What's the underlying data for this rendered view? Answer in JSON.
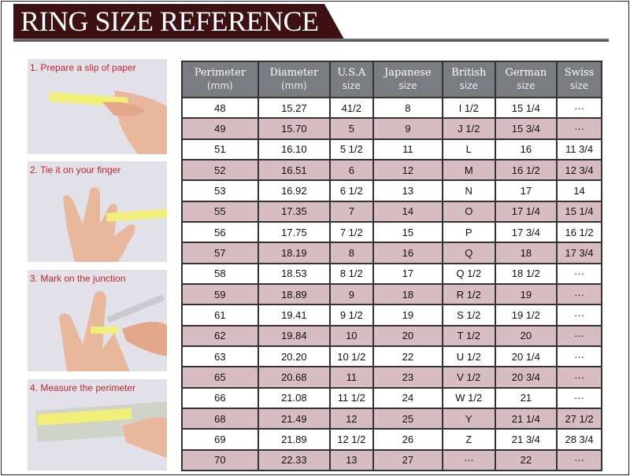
{
  "title": "RING SIZE REFERENCE",
  "colors": {
    "banner": "#3d1113",
    "header": "#7b7b82",
    "alt_row": "#d7bcc1",
    "step_text": "#c0282b"
  },
  "steps": [
    {
      "label": "1. Prepare a slip of paper"
    },
    {
      "label": "2. Tie it on your finger"
    },
    {
      "label": "3. Mark on the junction"
    },
    {
      "label": "4. Measure the perimeter"
    }
  ],
  "table": {
    "headers": [
      {
        "top": "Perimeter",
        "sub": "(mm)"
      },
      {
        "top": "Diameter",
        "sub": "(mm)"
      },
      {
        "top": "U.S.A",
        "sub": "size"
      },
      {
        "top": "Japanese",
        "sub": "size"
      },
      {
        "top": "British",
        "sub": "size"
      },
      {
        "top": "German",
        "sub": "size"
      },
      {
        "top": "Swiss",
        "sub": "size"
      }
    ],
    "rows": [
      [
        "48",
        "15.27",
        "41/2",
        "8",
        "I 1/2",
        "15 1/4",
        "···"
      ],
      [
        "49",
        "15.70",
        "5",
        "9",
        "J 1/2",
        "15 3/4",
        "···"
      ],
      [
        "51",
        "16.10",
        "5 1/2",
        "11",
        "L",
        "16",
        "11 3/4"
      ],
      [
        "52",
        "16.51",
        "6",
        "12",
        "M",
        "16 1/2",
        "12 3/4"
      ],
      [
        "53",
        "16.92",
        "6 1/2",
        "13",
        "N",
        "17",
        "14"
      ],
      [
        "55",
        "17.35",
        "7",
        "14",
        "O",
        "17 1/4",
        "15 1/4"
      ],
      [
        "56",
        "17.75",
        "7 1/2",
        "15",
        "P",
        "17 3/4",
        "16 1/2"
      ],
      [
        "57",
        "18.19",
        "8",
        "16",
        "Q",
        "18",
        "17 3/4"
      ],
      [
        "58",
        "18.53",
        "8 1/2",
        "17",
        "Q  1/2",
        "18 1/2",
        "···"
      ],
      [
        "59",
        "18.89",
        "9",
        "18",
        "R 1/2",
        "19",
        "···"
      ],
      [
        "61",
        "19.41",
        "9 1/2",
        "19",
        "S 1/2",
        "19 1/2",
        "···"
      ],
      [
        "62",
        "19.84",
        "10",
        "20",
        "T 1/2",
        "20",
        "···"
      ],
      [
        "63",
        "20.20",
        "10 1/2",
        "22",
        "U 1/2",
        "20 1/4",
        "···"
      ],
      [
        "65",
        "20.68",
        "11",
        "23",
        "V 1/2",
        "20 3/4",
        "···"
      ],
      [
        "66",
        "21.08",
        "11 1/2",
        "24",
        "W 1/2",
        "21",
        "···"
      ],
      [
        "68",
        "21.49",
        "12",
        "25",
        "Y",
        "21 1/4",
        "27 1/2"
      ],
      [
        "69",
        "21.89",
        "12 1/2",
        "26",
        "Z",
        "21 3/4",
        "28 3/4"
      ],
      [
        "70",
        "22.33",
        "13",
        "27",
        "···",
        "22",
        "···"
      ]
    ]
  }
}
